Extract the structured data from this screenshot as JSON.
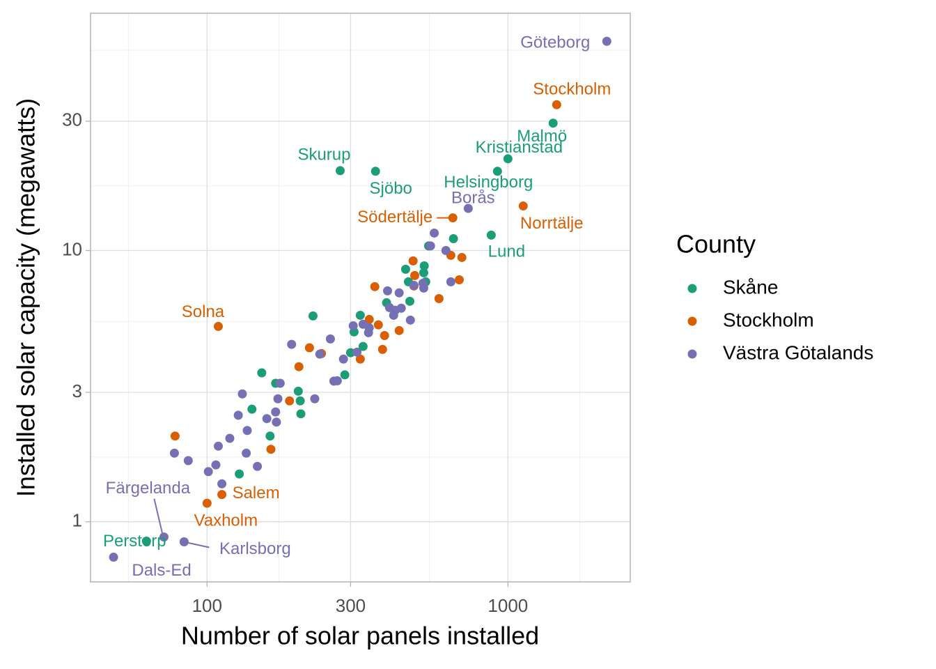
{
  "chart_data": {
    "type": "scatter",
    "x_label": "Number of solar panels installed",
    "y_label": "Installed solar capacity (megawatts)",
    "legend_title": "County",
    "xlog": true,
    "ylog": true,
    "grid": true,
    "xlim": [
      41,
      2550
    ],
    "ylim": [
      0.6,
      75
    ],
    "xticks": [
      100,
      300,
      1000
    ],
    "yticks": [
      1,
      3,
      10,
      30
    ],
    "series": [
      {
        "name": "Skåne",
        "color": "#1b9e77",
        "x": [
          1413,
          1000,
          923,
          277,
          363,
          880,
          62.9,
          659,
          545,
          527,
          457,
          525,
          467,
          533,
          472,
          395,
          323,
          225,
          308,
          330,
          300,
          287,
          152,
          169,
          201,
          204,
          141,
          162,
          128,
          205
        ],
        "values": [
          29.5,
          21.8,
          19.6,
          19.7,
          19.6,
          11.4,
          0.848,
          11.06,
          10.4,
          8.78,
          8.53,
          8.28,
          7.67,
          7.67,
          6.5,
          6.42,
          5.77,
          5.74,
          5.01,
          4.43,
          4.2,
          3.48,
          3.54,
          3.24,
          3.03,
          2.79,
          2.6,
          2.07,
          1.5,
          2.5
        ],
        "labels": [
          "Malmö",
          "Kristianstad",
          "Helsingborg",
          "Skurup",
          "Sjöbo",
          "Lund",
          "Perstorp",
          null,
          null,
          null,
          null,
          null,
          null,
          null,
          null,
          null,
          null,
          null,
          null,
          null,
          null,
          null,
          null,
          null,
          null,
          null,
          null,
          null,
          null,
          null
        ]
      },
      {
        "name": "Stockholm",
        "color": "#d95f02",
        "x": [
          1452,
          1124,
          656,
          109,
          112,
          100,
          484,
          646,
          703,
          490,
          487,
          689,
          361,
          590,
          346,
          371,
          389,
          435,
          383,
          323,
          219,
          240,
          202,
          188,
          78.3,
          163
        ],
        "values": [
          34.5,
          14.6,
          13.2,
          5.25,
          1.26,
          1.17,
          9.16,
          9.6,
          9.43,
          8.09,
          7.4,
          7.8,
          7.36,
          6.65,
          5.57,
          5.32,
          4.86,
          5.07,
          4.32,
          3.98,
          4.38,
          4.17,
          3.73,
          2.79,
          2.07,
          1.85
        ],
        "labels": [
          "Stockholm",
          "Norrtälje",
          "Södertälje",
          "Solna",
          "Salem",
          "Vaxholm",
          null,
          null,
          null,
          null,
          null,
          null,
          null,
          null,
          null,
          null,
          null,
          null,
          null,
          null,
          null,
          null,
          null,
          null,
          null,
          null
        ]
      },
      {
        "name": "Västra Götalands",
        "color": "#7570b3",
        "x": [
          2131,
          738,
          71.9,
          83.9,
          48.9,
          569,
          553,
          622,
          646,
          522,
          487,
          525,
          435,
          398,
          404,
          422,
          417,
          442,
          474,
          306,
          330,
          344,
          346,
          315,
          257,
          237,
          191,
          284,
          271,
          264,
          228,
          175,
          131,
          172,
          127,
          169,
          158,
          170,
          136,
          119,
          109,
          77.9,
          86.6,
          135,
          107,
          101,
          147,
          112
        ],
        "values": [
          59.1,
          14.3,
          0.878,
          0.843,
          0.74,
          11.6,
          10.4,
          10.0,
          7.67,
          7.58,
          7.44,
          7.27,
          6.98,
          7.1,
          6.16,
          6.02,
          5.77,
          6.13,
          5.54,
          5.28,
          5.35,
          4.98,
          5.19,
          4.22,
          4.72,
          4.15,
          4.51,
          3.98,
          3.31,
          3.3,
          2.84,
          3.24,
          2.96,
          2.84,
          2.47,
          2.54,
          2.4,
          2.33,
          2.17,
          2.03,
          1.9,
          1.79,
          1.68,
          1.79,
          1.62,
          1.53,
          1.6,
          1.38
        ],
        "labels": [
          "Göteborg",
          "Borås",
          "Färgelanda",
          "Karlsborg",
          "Dals-Ed",
          null,
          null,
          null,
          null,
          null,
          null,
          null,
          null,
          null,
          null,
          null,
          null,
          null,
          null,
          null,
          null,
          null,
          null,
          null,
          null,
          null,
          null,
          null,
          null,
          null,
          null,
          null,
          null,
          null,
          null,
          null,
          null,
          null,
          null,
          null,
          null,
          null,
          null,
          null,
          null,
          null,
          null,
          null
        ]
      }
    ]
  }
}
